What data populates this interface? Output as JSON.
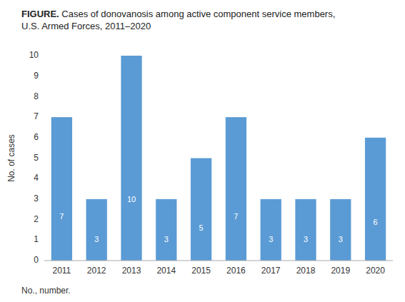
{
  "chart_data": {
    "type": "bar",
    "title": "FIGURE. Cases of donovanosis among active component service members,\nU.S. Armed Forces, 2011–2020",
    "categories": [
      "2011",
      "2012",
      "2013",
      "2014",
      "2015",
      "2016",
      "2017",
      "2018",
      "2019",
      "2020"
    ],
    "values": [
      7,
      3,
      10,
      3,
      5,
      7,
      3,
      3,
      3,
      6
    ],
    "color": "#5b9bd5",
    "ylabel": "No. of cases",
    "ylim": [
      0,
      10
    ],
    "yticks": [
      0,
      1,
      2,
      3,
      4,
      5,
      6,
      7,
      8,
      9,
      10
    ],
    "grid": false,
    "data_labels": true,
    "footnote": "No., number."
  }
}
